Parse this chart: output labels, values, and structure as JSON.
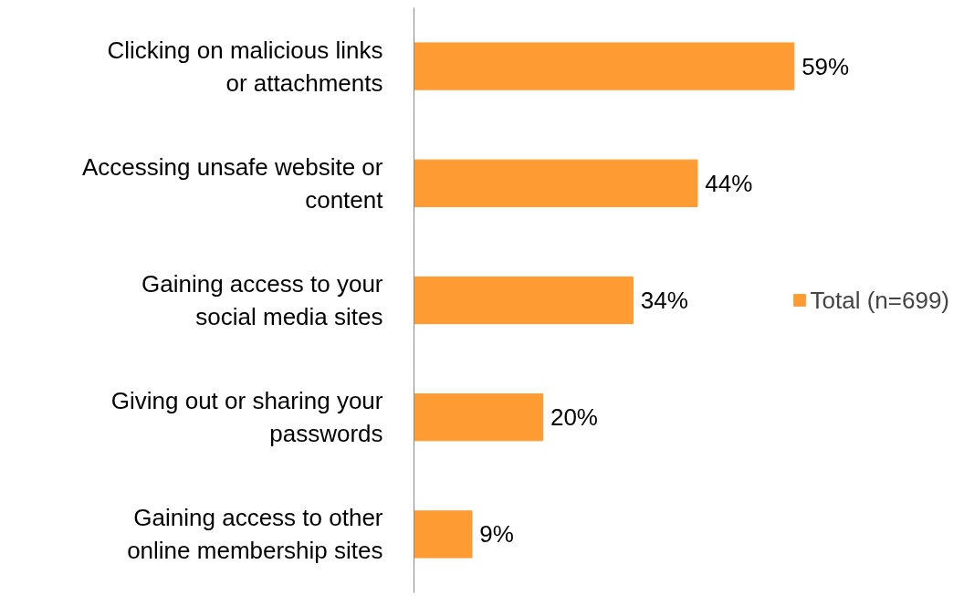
{
  "chart_data": {
    "type": "bar",
    "orientation": "horizontal",
    "categories": [
      "Clicking on malicious links or attachments",
      "Accessing unsafe website or content",
      "Gaining access to your social media sites",
      "Giving out or sharing your passwords",
      "Gaining access to other online membership sites"
    ],
    "series": [
      {
        "name": "Total (n=699)",
        "color": "#ff9b33",
        "values": [
          59,
          44,
          34,
          20,
          9
        ],
        "value_labels": [
          "59%",
          "44%",
          "34%",
          "20%",
          "9%"
        ]
      }
    ],
    "legend": "right",
    "grid": false
  }
}
